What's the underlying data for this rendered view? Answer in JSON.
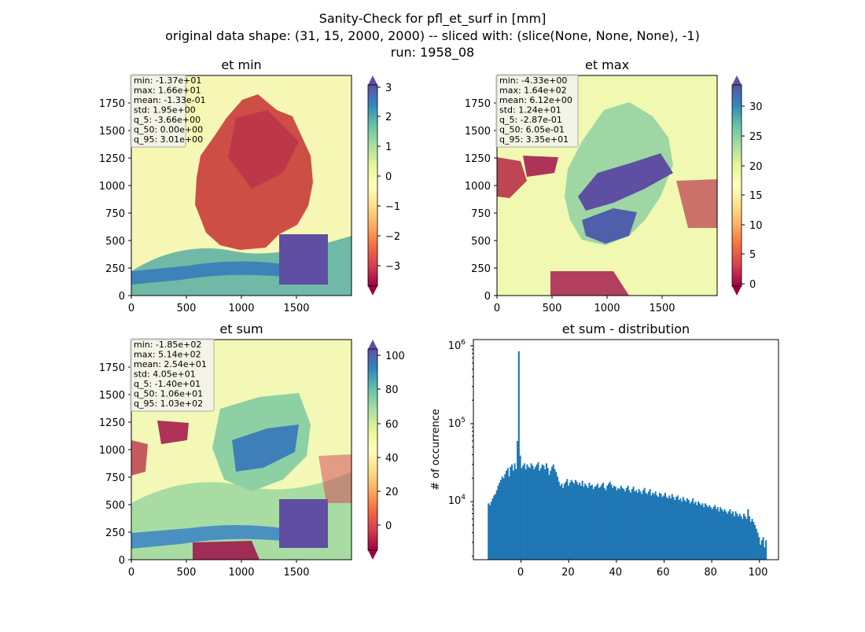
{
  "figure": {
    "suptitle_lines": [
      "Sanity-Check for pfl_et_surf in [mm]",
      "original data shape: (31, 15, 2000, 2000) -- sliced with: (slice(None, None, None), -1)",
      "run: 1958_08"
    ]
  },
  "chart_data": [
    {
      "type": "heatmap",
      "title": "et min",
      "xlim": [
        0,
        2000
      ],
      "ylim": [
        0,
        2000
      ],
      "xticks": [
        "0",
        "500",
        "1000",
        "1500"
      ],
      "yticks": [
        "0",
        "250",
        "500",
        "750",
        "1000",
        "1250",
        "1500",
        "1750"
      ],
      "colormap": "Spectral",
      "colorbar": {
        "range": [
          -3.8,
          3.2
        ],
        "ticks": [
          "3",
          "2",
          "1",
          "0",
          "−1",
          "−2",
          "−3"
        ],
        "extend": "both"
      },
      "stats": [
        "min: -1.37e+01",
        "max: 1.66e+01",
        "mean: -1.33e-01",
        "std: 1.95e+00",
        "q_5: -3.66e+00",
        "q_50: 0.00e+00",
        "q_95: 3.01e+00"
      ]
    },
    {
      "type": "heatmap",
      "title": "et max",
      "xlim": [
        0,
        2000
      ],
      "ylim": [
        0,
        2000
      ],
      "xticks": [
        "0",
        "500",
        "1000",
        "1500"
      ],
      "yticks": [
        "0",
        "250",
        "500",
        "750",
        "1000",
        "1250",
        "1500",
        "1750"
      ],
      "colormap": "Spectral",
      "colorbar": {
        "range": [
          -0.5,
          34
        ],
        "ticks": [
          "30",
          "25",
          "20",
          "15",
          "10",
          "5",
          "0"
        ],
        "extend": "both"
      },
      "stats": [
        "min: -4.33e+00",
        "max: 1.64e+02",
        "mean: 6.12e+00",
        "std: 1.24e+01",
        "q_5: -2.87e-01",
        "q_50: 6.05e-01",
        "q_95: 3.35e+01"
      ]
    },
    {
      "type": "heatmap",
      "title": "et sum",
      "xlim": [
        0,
        2000
      ],
      "ylim": [
        0,
        2000
      ],
      "xticks": [
        "0",
        "500",
        "1000",
        "1500"
      ],
      "yticks": [
        "0",
        "250",
        "500",
        "750",
        "1000",
        "1250",
        "1500",
        "1750"
      ],
      "colormap": "Spectral",
      "colorbar": {
        "range": [
          -12,
          108
        ],
        "ticks": [
          "100",
          "80",
          "60",
          "40",
          "20",
          "0"
        ],
        "extend": "both"
      },
      "stats": [
        "min: -1.85e+02",
        "max: 5.14e+02",
        "mean: 2.54e+01",
        "std: 4.05e+01",
        "q_5: -1.40e+01",
        "q_50: 1.06e+01",
        "q_95: 1.03e+02"
      ]
    },
    {
      "type": "bar",
      "title": "et sum - distribution",
      "xlabel": "",
      "ylabel": "# of occurrence",
      "yscale": "log",
      "xlim": [
        -20,
        108
      ],
      "ylim": [
        1800,
        1200000
      ],
      "xticks": [
        "0",
        "20",
        "40",
        "60",
        "80",
        "100"
      ],
      "yticks": [
        "10^4",
        "10^5",
        "10^6"
      ],
      "bar_color": "#1f77b4",
      "bin_edges_range": [
        -14,
        103
      ],
      "values": [
        9500,
        9000,
        10000,
        11000,
        12000,
        12500,
        14000,
        16000,
        17500,
        19000,
        21000,
        20000,
        22500,
        25000,
        27000,
        21000,
        28000,
        30000,
        25000,
        31000,
        26000,
        60000,
        850000,
        39000,
        27000,
        29000,
        31000,
        26000,
        30000,
        28000,
        27000,
        31000,
        29000,
        26000,
        28000,
        30000,
        32000,
        25000,
        27000,
        30000,
        29000,
        26000,
        31000,
        27000,
        22000,
        25000,
        28000,
        30000,
        26000,
        24000,
        21000,
        18000,
        16000,
        17000,
        15000,
        17000,
        18000,
        19500,
        16000,
        17500,
        19000,
        18000,
        17000,
        19000,
        18000,
        16500,
        17500,
        16000,
        18500,
        15500,
        17000,
        16000,
        15000,
        17500,
        16000,
        16500,
        14500,
        15500,
        16000,
        17000,
        15000,
        15500,
        16500,
        17500,
        15000,
        14000,
        16000,
        17000,
        18000,
        16500,
        15000,
        16000,
        15500,
        14000,
        15000,
        14500,
        16000,
        15000,
        14500,
        13500,
        15000,
        16000,
        14000,
        13000,
        14500,
        15500,
        13500,
        14000,
        13000,
        14500,
        13500,
        12500,
        14000,
        15000,
        13000,
        12500,
        13500,
        14500,
        12000,
        13000,
        12500,
        13500,
        12000,
        11500,
        13000,
        12500,
        11500,
        12000,
        13000,
        11500,
        11000,
        12000,
        11000,
        12500,
        11500,
        10500,
        11500,
        12000,
        10500,
        11000,
        10000,
        11500,
        10500,
        10000,
        11000,
        10500,
        9500,
        10000,
        11000,
        9500,
        10000,
        9000,
        10000,
        9500,
        9000,
        9500,
        8500,
        9500,
        9000,
        8500,
        9000,
        8500,
        8000,
        8500,
        9000,
        8000,
        8500,
        7500,
        8500,
        8000,
        7500,
        8000,
        7500,
        7000,
        7500,
        8000,
        7000,
        7500,
        6500,
        7500,
        7000,
        6500,
        7000,
        6500,
        6000,
        7000,
        6500,
        6000,
        8000,
        6500,
        5500,
        6000,
        5500,
        5000,
        4500,
        4000,
        3500,
        2800,
        3200,
        3500,
        2600,
        3200
      ]
    }
  ]
}
